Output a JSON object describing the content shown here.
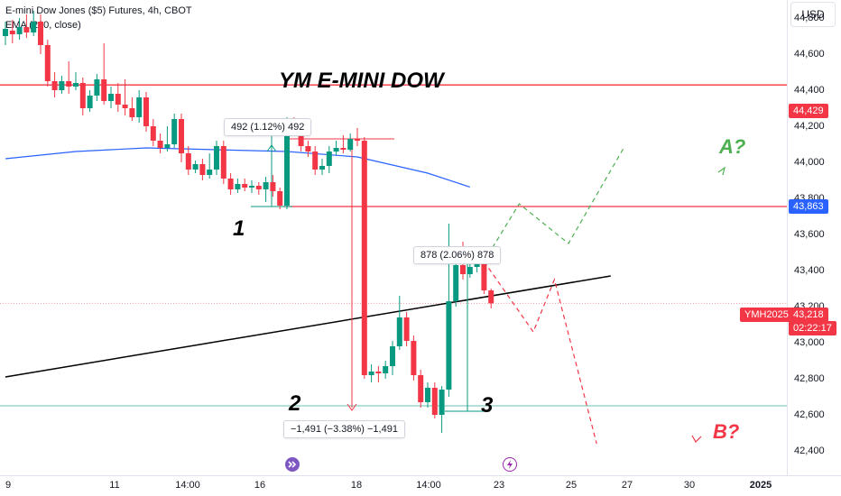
{
  "header": {
    "title": "E-mini Dow Jones ($5) Futures, 4h, CBOT",
    "indicator": "EMA (200, close)",
    "currency": "USD"
  },
  "annotations": {
    "main_title": "YM E-MINI DOW",
    "label_1": "1",
    "label_2": "2",
    "label_3": "3",
    "scenario_a": "A?",
    "scenario_b": "B?",
    "measure_1": "492 (1.12%) 492",
    "measure_2": "−1,491 (−3.38%) −1,491",
    "measure_3": "878 (2.06%) 878"
  },
  "price_tags": {
    "resistance": "44,429",
    "ema": "43,863",
    "symbol": "YMH2025",
    "last_price": "43,218",
    "countdown": "02:22:17"
  },
  "colors": {
    "up": "#089981",
    "down": "#f23645",
    "ema": "#2962ff",
    "trendline": "#000000",
    "resistance": "#f23645",
    "scenario_a": "#4caf50",
    "scenario_b": "#f23645",
    "support": "#089981"
  },
  "icons": [
    "forward-event-icon",
    "lightning-event-icon"
  ],
  "chart_data": {
    "type": "candlestick",
    "title": "YM E-MINI DOW",
    "y_ticks": [
      42400,
      42600,
      42800,
      43000,
      43200,
      43400,
      43600,
      43800,
      44000,
      44200,
      44400,
      44600,
      44800
    ],
    "y_tick_labels": [
      "42,400",
      "42,600",
      "42,800",
      "43,000",
      "43,200",
      "43,400",
      "43,600",
      "43,800",
      "44,000",
      "44,200",
      "44,400",
      "44,600",
      "44,800"
    ],
    "x_tick_labels": [
      "9",
      "11",
      "14:00",
      "16",
      "18",
      "14:00",
      "23",
      "25",
      "27",
      "30",
      "2025"
    ],
    "ylim": [
      42300,
      44950
    ],
    "horizontal_levels": [
      {
        "name": "resistance",
        "value": 44429
      },
      {
        "name": "level-1",
        "value": 43755
      },
      {
        "name": "level-2",
        "value": 44130
      },
      {
        "name": "support",
        "value": 42650
      },
      {
        "name": "last-price",
        "value": 43218
      }
    ],
    "candles": [
      [
        44700,
        44740,
        44780,
        44650
      ],
      [
        44730,
        44710,
        44790,
        44660
      ],
      [
        44710,
        44750,
        44800,
        44680
      ],
      [
        44750,
        44720,
        44820,
        44690
      ],
      [
        44720,
        44780,
        44840,
        44700
      ],
      [
        44780,
        44650,
        44820,
        44600
      ],
      [
        44650,
        44450,
        44680,
        44420
      ],
      [
        44450,
        44400,
        44500,
        44360
      ],
      [
        44400,
        44450,
        44480,
        44380
      ],
      [
        44450,
        44420,
        44560,
        44380
      ],
      [
        44420,
        44440,
        44500,
        44400
      ],
      [
        44440,
        44300,
        44470,
        44260
      ],
      [
        44300,
        44370,
        44400,
        44280
      ],
      [
        44370,
        44460,
        44490,
        44340
      ],
      [
        44460,
        44340,
        44660,
        44320
      ],
      [
        44340,
        44380,
        44420,
        44300
      ],
      [
        44380,
        44320,
        44440,
        44280
      ],
      [
        44320,
        44300,
        44460,
        44260
      ],
      [
        44300,
        44250,
        44360,
        44230
      ],
      [
        44250,
        44360,
        44400,
        44220
      ],
      [
        44360,
        44200,
        44390,
        44170
      ],
      [
        44200,
        44120,
        44240,
        44090
      ],
      [
        44120,
        44080,
        44160,
        44050
      ],
      [
        44080,
        44100,
        44200,
        44060
      ],
      [
        44100,
        44240,
        44270,
        44080
      ],
      [
        44240,
        44050,
        44270,
        44000
      ],
      [
        44050,
        43960,
        44090,
        43930
      ],
      [
        43960,
        43990,
        44010,
        43940
      ],
      [
        43990,
        43930,
        44020,
        43900
      ],
      [
        43930,
        43960,
        44050,
        43910
      ],
      [
        43960,
        44090,
        44120,
        43930
      ],
      [
        44090,
        43910,
        44120,
        43880
      ],
      [
        43910,
        43850,
        43940,
        43820
      ],
      [
        43850,
        43880,
        43910,
        43830
      ],
      [
        43880,
        43860,
        43910,
        43840
      ],
      [
        43860,
        43870,
        43900,
        43830
      ],
      [
        43870,
        43850,
        43890,
        43820
      ],
      [
        43850,
        43890,
        43920,
        43780
      ],
      [
        43890,
        43840,
        43930,
        43810
      ],
      [
        43840,
        43760,
        43860,
        43740
      ],
      [
        43760,
        44235,
        44250,
        43740
      ],
      [
        44235,
        44180,
        44250,
        44150
      ],
      [
        44180,
        44090,
        44200,
        44060
      ],
      [
        44090,
        44060,
        44120,
        44030
      ],
      [
        44060,
        43960,
        44090,
        43930
      ],
      [
        43960,
        43980,
        44020,
        43930
      ],
      [
        43980,
        44060,
        44090,
        43940
      ],
      [
        44060,
        44080,
        44120,
        44040
      ],
      [
        44080,
        44070,
        44150,
        44050
      ],
      [
        44070,
        44130,
        44160,
        44060
      ],
      [
        44130,
        44120,
        44190,
        44090
      ],
      [
        44120,
        42820,
        44140,
        42800
      ],
      [
        42820,
        42840,
        42880,
        42780
      ],
      [
        42840,
        42830,
        42870,
        42780
      ],
      [
        42830,
        42870,
        42900,
        42800
      ],
      [
        42870,
        42980,
        43010,
        42820
      ],
      [
        42980,
        43140,
        43260,
        42960
      ],
      [
        43140,
        43010,
        43170,
        42980
      ],
      [
        43010,
        42820,
        43040,
        42790
      ],
      [
        42820,
        42670,
        42850,
        42640
      ],
      [
        42670,
        42750,
        42780,
        42640
      ],
      [
        42750,
        42600,
        42780,
        42580
      ],
      [
        42600,
        42740,
        42760,
        42500
      ],
      [
        42740,
        43230,
        43660,
        42700
      ],
      [
        43230,
        43430,
        43480,
        43200
      ],
      [
        43430,
        43380,
        43560,
        43350
      ],
      [
        43380,
        43420,
        43490,
        43360
      ],
      [
        43420,
        43450,
        43480,
        43390
      ],
      [
        43450,
        43290,
        43470,
        43270
      ],
      [
        43290,
        43218,
        43300,
        43190
      ]
    ],
    "ema_200": [
      [
        0,
        44020
      ],
      [
        10,
        44060
      ],
      [
        20,
        44080
      ],
      [
        30,
        44070
      ],
      [
        40,
        44060
      ],
      [
        50,
        44030
      ],
      [
        60,
        43940
      ],
      [
        66,
        43863
      ]
    ],
    "trendline": {
      "start": [
        0,
        42810
      ],
      "end": [
        86,
        43370
      ]
    },
    "scenario_a": [
      [
        68,
        43450
      ],
      [
        73,
        43770
      ],
      [
        80,
        43550
      ],
      [
        88,
        44090
      ]
    ],
    "scenario_b": [
      [
        68,
        43450
      ],
      [
        75,
        43060
      ],
      [
        78,
        43350
      ],
      [
        84,
        42440
      ]
    ]
  }
}
